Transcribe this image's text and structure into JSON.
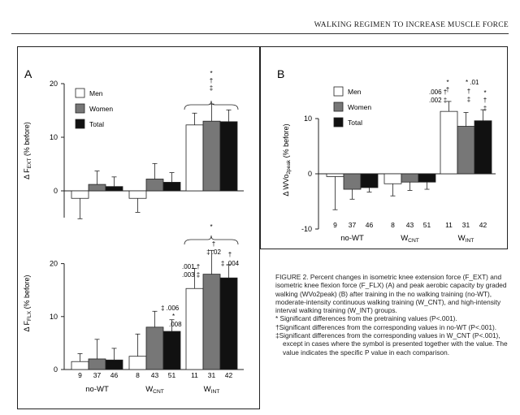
{
  "running_head": "WALKING REGIMEN TO INCREASE MUSCLE FORCE",
  "legend": [
    "Men",
    "Women",
    "Total"
  ],
  "groups": [
    "no-WT",
    "W_CNT",
    "W_INT"
  ],
  "chart_data": [
    {
      "type": "bar",
      "panel": "A",
      "ylabel": "Δ F_EXT (% before)",
      "ylim": [
        -5,
        20
      ],
      "yticks": [
        0,
        10,
        20
      ],
      "categories": [
        "no-WT",
        "W_CNT",
        "W_INT"
      ],
      "series": [
        {
          "name": "Men",
          "values": [
            -1.4,
            -1.4,
            12.3
          ],
          "err": [
            3.8,
            2.6,
            2.2
          ],
          "n": [
            9,
            8,
            11
          ]
        },
        {
          "name": "Women",
          "values": [
            1.2,
            2.2,
            13.0
          ],
          "err": [
            2.5,
            2.9,
            3.2
          ],
          "n": [
            37,
            43,
            31
          ]
        },
        {
          "name": "Total",
          "values": [
            0.8,
            1.6,
            12.9
          ],
          "err": [
            1.8,
            1.8,
            2.2
          ],
          "n": [
            46,
            51,
            42
          ]
        }
      ],
      "annotations": {
        "top": [
          "*",
          "†",
          "‡"
        ]
      }
    },
    {
      "type": "bar",
      "panel": "A",
      "ylabel": "Δ F_FLX (% before)",
      "ylim": [
        0,
        25
      ],
      "yticks": [
        0,
        10,
        20
      ],
      "categories": [
        "no-WT",
        "W_CNT",
        "W_INT"
      ],
      "series": [
        {
          "name": "Men",
          "values": [
            1.5,
            2.5,
            15.3
          ],
          "err": [
            1.5,
            4.2,
            3.8
          ],
          "n": [
            9,
            8,
            11
          ]
        },
        {
          "name": "Women",
          "values": [
            2.0,
            8.0,
            18.0
          ],
          "err": [
            3.7,
            3.0,
            4.5
          ],
          "n": [
            37,
            43,
            31
          ]
        },
        {
          "name": "Total",
          "values": [
            1.8,
            7.2,
            17.3
          ],
          "err": [
            2.2,
            2.2,
            2.5
          ],
          "n": [
            46,
            51,
            42
          ]
        }
      ],
      "bar_labels": {
        "Men_W_INT": [
          ".001 †",
          ".003 ‡"
        ],
        "Women_W_CNT": "‡ .006",
        "Total_W_CNT": [
          "*",
          ".008"
        ],
        "Women_W_INT": [
          "†",
          "‡ .02"
        ],
        "Total_W_INT": [
          "†",
          "‡ .004"
        ]
      },
      "annotations": {
        "top": [
          "*"
        ]
      }
    },
    {
      "type": "bar",
      "panel": "B",
      "ylabel": "Δ WVo2peak (% before)",
      "ylim": [
        -10,
        15
      ],
      "yticks": [
        -10,
        0,
        10
      ],
      "categories": [
        "no-WT",
        "W_CNT",
        "W_INT"
      ],
      "series": [
        {
          "name": "Men",
          "values": [
            -0.5,
            -1.8,
            11.3
          ],
          "err": [
            6.0,
            2.2,
            1.8
          ],
          "n": [
            9,
            8,
            11
          ]
        },
        {
          "name": "Women",
          "values": [
            -2.8,
            -1.5,
            8.6
          ],
          "err": [
            1.8,
            1.5,
            2.5
          ],
          "n": [
            37,
            43,
            31
          ]
        },
        {
          "name": "Total",
          "values": [
            -2.5,
            -1.5,
            9.6
          ],
          "err": [
            0.8,
            1.3,
            2.0
          ],
          "n": [
            46,
            51,
            42
          ]
        }
      ],
      "bar_labels": {
        "Men_W_INT": [
          ".006 †",
          ".002 ‡"
        ],
        "Women_W_INT": [
          "* .01",
          "†",
          "‡"
        ],
        "Total_W_INT": [
          "*",
          "†",
          "‡"
        ]
      }
    }
  ],
  "caption": {
    "main": "FIGURE 2. Percent changes in isometric knee extension force (F_EXT) and isometric knee flexion force (F_FLX) (A) and peak aerobic capacity by graded walking (WVo2peak) (B) after training in the no walking training (no-WT), moderate-intensity continuous walking training (W_CNT), and high-intensity interval walking training (W_INT) groups.",
    "fn1": "* Significant differences from the pretraining values (P<.001).",
    "fn2": "†Significant differences from the corresponding values in no-WT (P<.001).",
    "fn3": "‡Significant differences from the corresponding values in W_CNT (P<.001), except in cases where the symbol is presented together with the value. The value indicates the specific P value in each comparison."
  }
}
